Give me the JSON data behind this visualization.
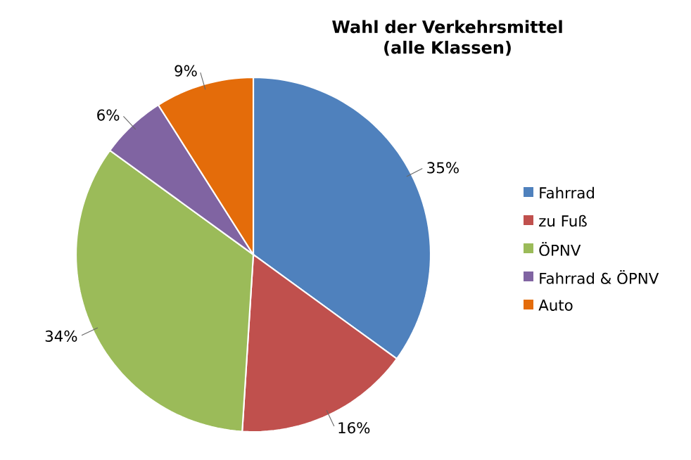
{
  "chart_data": {
    "type": "pie",
    "title": "Wahl der Verkehrsmittel (alle Klassen)",
    "categories": [
      "Fahrrad",
      "zu Fuß",
      "ÖPNV",
      "Fahrrad & ÖPNV",
      "Auto"
    ],
    "values": [
      35,
      16,
      34,
      6,
      9
    ],
    "value_labels": [
      "35%",
      "16%",
      "34%",
      "6%",
      "9%"
    ],
    "colors": [
      "#4f81bd",
      "#c0504d",
      "#9bbb59",
      "#8064a2",
      "#e46c0a"
    ],
    "legend": "right"
  }
}
